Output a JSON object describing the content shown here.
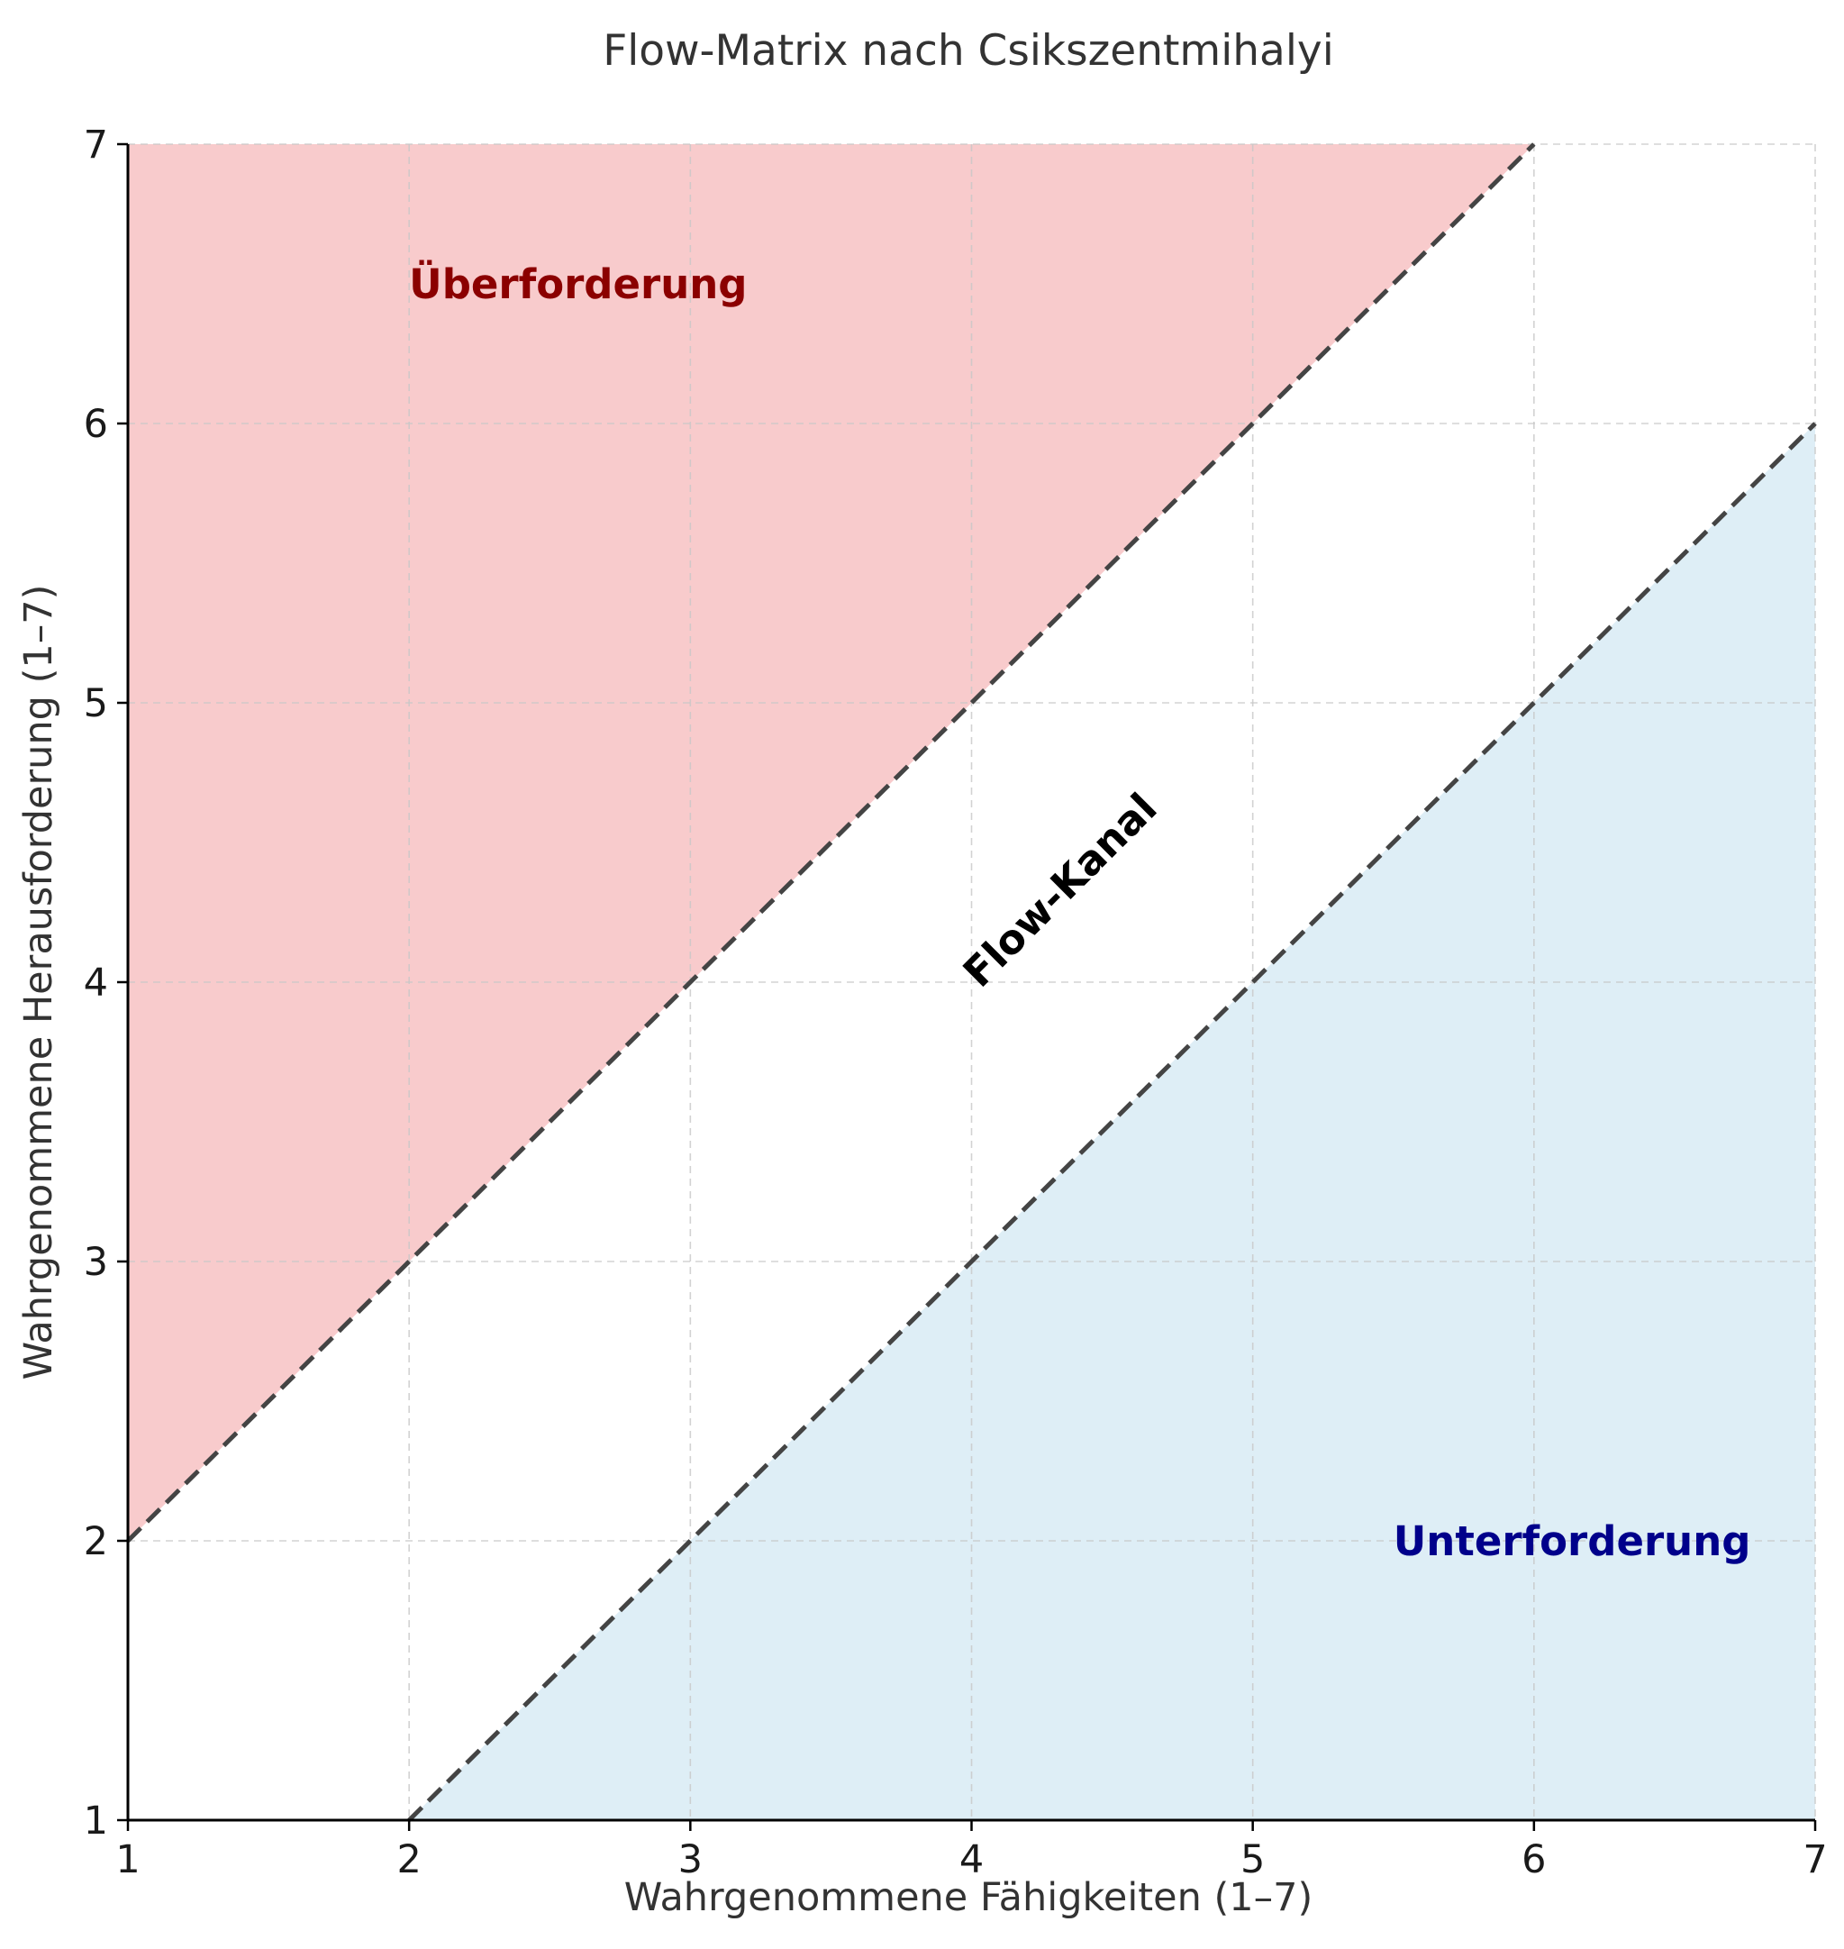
{
  "chart_data": {
    "type": "area",
    "title": "Flow-Matrix nach Csikszentmihalyi",
    "xlabel": "Wahrgenommene Fähigkeiten (1–7)",
    "ylabel": "Wahrgenommene Herausforderung (1–7)",
    "xlim": [
      1,
      7
    ],
    "ylim": [
      1,
      7
    ],
    "xticks": [
      1,
      2,
      3,
      4,
      5,
      6,
      7
    ],
    "yticks": [
      1,
      2,
      3,
      4,
      5,
      6,
      7
    ],
    "grid": true,
    "lines": [
      {
        "id": "upper",
        "x": [
          1,
          6
        ],
        "y": [
          2,
          7
        ],
        "style": "dashed"
      },
      {
        "id": "lower",
        "x": [
          2,
          7
        ],
        "y": [
          1,
          6
        ],
        "style": "dashed"
      }
    ],
    "regions": [
      {
        "id": "ueberforderung",
        "label": "Überforderung",
        "color": "#f8cbcc",
        "label_color": "#8b0000",
        "label_at": [
          2,
          6.5
        ]
      },
      {
        "id": "unterforderung",
        "label": "Unterforderung",
        "color": "#deeef6",
        "label_color": "#00008b",
        "label_at": [
          5.5,
          2
        ]
      }
    ],
    "annotations": [
      {
        "id": "flow-kanal",
        "text": "Flow-Kanal",
        "at": [
          4,
          4
        ],
        "rotation": 45
      }
    ]
  }
}
